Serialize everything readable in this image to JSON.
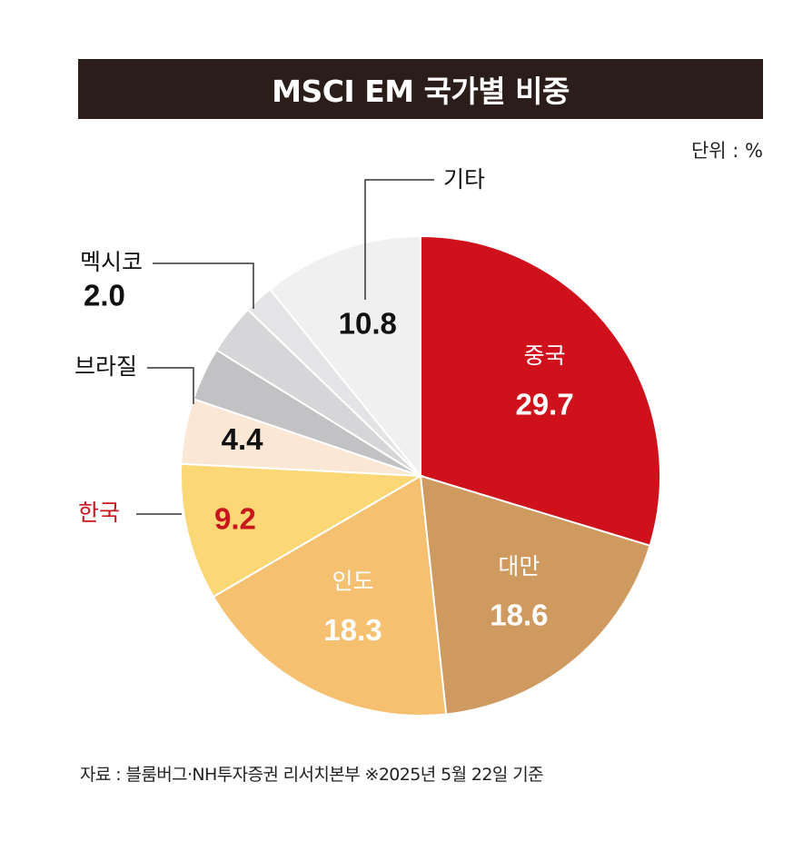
{
  "header": {
    "title": "MSCI EM 국가별 비중",
    "unit": "단위 : %"
  },
  "footer": {
    "source": "자료 : 블룸버그·NH투자증권 리서치본부  ※2025년 5월 22일 기준"
  },
  "colors": {
    "china": "#cf111c",
    "taiwan": "#cf9a5f",
    "india": "#f6c071",
    "korea": "#fbd776",
    "brazil": "#fbe7d5",
    "gray1": "#c2c2c4",
    "gray2": "#d6d6d8",
    "mexico": "#e4e4e6",
    "other": "#f0f0f1",
    "korea_label": "#c8161d"
  },
  "chart_data": {
    "type": "pie",
    "start_angle_deg": 0,
    "direction": "clockwise",
    "slices": [
      {
        "key": "china",
        "label": "중국",
        "value": 29.7,
        "value_text": "29.7"
      },
      {
        "key": "taiwan",
        "label": "대만",
        "value": 18.6,
        "value_text": "18.6"
      },
      {
        "key": "india",
        "label": "인도",
        "value": 18.3,
        "value_text": "18.3"
      },
      {
        "key": "korea",
        "label": "한국",
        "value": 9.2,
        "value_text": "9.2"
      },
      {
        "key": "brazil",
        "label": "브라질",
        "value": 4.4,
        "value_text": "4.4"
      },
      {
        "key": "gray1",
        "label": "",
        "value": 3.6,
        "value_text": ""
      },
      {
        "key": "gray2",
        "label": "",
        "value": 3.4,
        "value_text": ""
      },
      {
        "key": "mexico",
        "label": "멕시코",
        "value": 2.0,
        "value_text": "2.0"
      },
      {
        "key": "other",
        "label": "기타",
        "value": 10.8,
        "value_text": "10.8"
      }
    ]
  }
}
